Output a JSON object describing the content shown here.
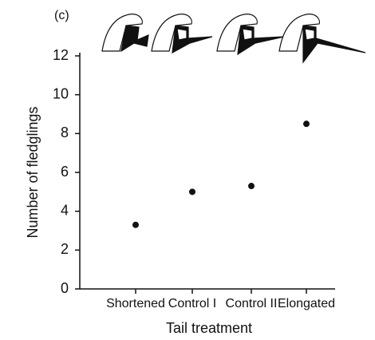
{
  "chart_data": {
    "type": "dot",
    "title": "(c)",
    "categories": [
      "Shortened",
      "Control I",
      "Control II",
      "Elongated"
    ],
    "values": [
      3.3,
      5.0,
      5.3,
      8.5
    ],
    "color": "#111111",
    "ylim": [
      0,
      12
    ],
    "yticks": [
      0,
      2,
      4,
      6,
      8,
      10,
      12
    ],
    "xlabel": "Tail treatment",
    "ylabel": "Number of fledglings"
  }
}
